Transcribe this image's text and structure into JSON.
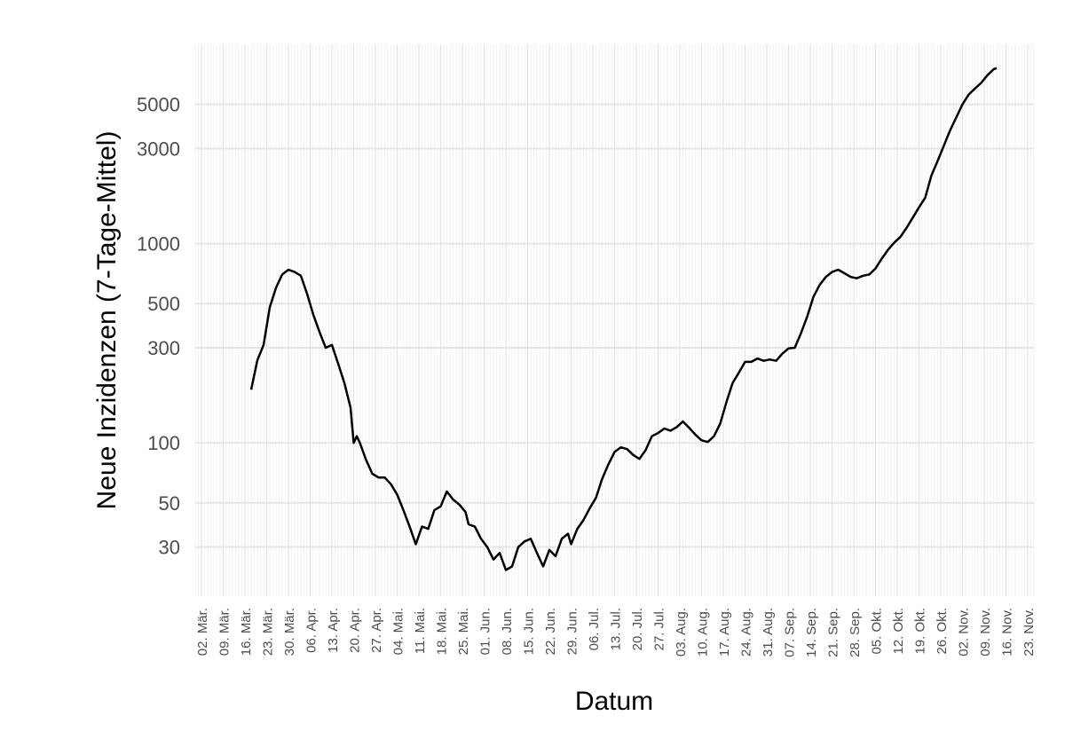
{
  "chart_data": {
    "type": "line",
    "y_label": "Neue Inzidenzen (7-Tage-Mittel)",
    "x_label": "Datum",
    "log_y": true,
    "grid": true,
    "color": "#000000",
    "xlim": [
      "02-28",
      "11-25"
    ],
    "ylim": [
      17,
      10000
    ],
    "yticks": [
      30,
      50,
      100,
      300,
      500,
      1000,
      3000,
      5000
    ],
    "xticks": [
      {
        "value": "03-02",
        "label": "02. Mär."
      },
      {
        "value": "03-09",
        "label": "09. Mär."
      },
      {
        "value": "03-16",
        "label": "16. Mär."
      },
      {
        "value": "03-23",
        "label": "23. Mär."
      },
      {
        "value": "03-30",
        "label": "30. Mär."
      },
      {
        "value": "04-06",
        "label": "06. Apr."
      },
      {
        "value": "04-13",
        "label": "13. Apr."
      },
      {
        "value": "04-20",
        "label": "20. Apr."
      },
      {
        "value": "04-27",
        "label": "27. Apr."
      },
      {
        "value": "05-04",
        "label": "04. Mai."
      },
      {
        "value": "05-11",
        "label": "11. Mai."
      },
      {
        "value": "05-18",
        "label": "18. Mai."
      },
      {
        "value": "05-25",
        "label": "25. Mai."
      },
      {
        "value": "06-01",
        "label": "01. Jun."
      },
      {
        "value": "06-08",
        "label": "08. Jun."
      },
      {
        "value": "06-15",
        "label": "15. Jun."
      },
      {
        "value": "06-22",
        "label": "22. Jun."
      },
      {
        "value": "06-29",
        "label": "29. Jun."
      },
      {
        "value": "07-06",
        "label": "06. Jul."
      },
      {
        "value": "07-13",
        "label": "13. Jul."
      },
      {
        "value": "07-20",
        "label": "20. Jul."
      },
      {
        "value": "07-27",
        "label": "27. Jul."
      },
      {
        "value": "08-03",
        "label": "03. Aug."
      },
      {
        "value": "08-10",
        "label": "10. Aug."
      },
      {
        "value": "08-17",
        "label": "17. Aug."
      },
      {
        "value": "08-24",
        "label": "24. Aug."
      },
      {
        "value": "08-31",
        "label": "31. Aug."
      },
      {
        "value": "09-07",
        "label": "07. Sep."
      },
      {
        "value": "09-14",
        "label": "14. Sep."
      },
      {
        "value": "09-21",
        "label": "21. Sep."
      },
      {
        "value": "09-28",
        "label": "28. Sep."
      },
      {
        "value": "10-05",
        "label": "05. Okt."
      },
      {
        "value": "10-12",
        "label": "12. Okt."
      },
      {
        "value": "10-19",
        "label": "19. Okt."
      },
      {
        "value": "10-26",
        "label": "26. Okt."
      },
      {
        "value": "11-02",
        "label": "02. Nov."
      },
      {
        "value": "11-09",
        "label": "09. Nov."
      },
      {
        "value": "11-16",
        "label": "16. Nov."
      },
      {
        "value": "11-23",
        "label": "23. Nov."
      }
    ],
    "x": [
      "03-18",
      "03-20",
      "03-22",
      "03-24",
      "03-26",
      "03-28",
      "03-30",
      "04-01",
      "04-03",
      "04-05",
      "04-07",
      "04-09",
      "04-11",
      "04-13",
      "04-15",
      "04-17",
      "04-19",
      "04-20",
      "04-21",
      "04-22",
      "04-24",
      "04-26",
      "04-28",
      "04-30",
      "05-02",
      "05-04",
      "05-06",
      "05-08",
      "05-10",
      "05-12",
      "05-14",
      "05-16",
      "05-18",
      "05-20",
      "05-22",
      "05-24",
      "05-26",
      "05-27",
      "05-29",
      "05-31",
      "06-02",
      "06-04",
      "06-06",
      "06-08",
      "06-10",
      "06-12",
      "06-14",
      "06-16",
      "06-18",
      "06-20",
      "06-22",
      "06-24",
      "06-26",
      "06-28",
      "06-29",
      "07-01",
      "07-03",
      "07-05",
      "07-07",
      "07-09",
      "07-11",
      "07-13",
      "07-15",
      "07-17",
      "07-19",
      "07-21",
      "07-23",
      "07-25",
      "07-27",
      "07-29",
      "07-31",
      "08-02",
      "08-04",
      "08-06",
      "08-08",
      "08-10",
      "08-12",
      "08-14",
      "08-16",
      "08-18",
      "08-20",
      "08-22",
      "08-24",
      "08-26",
      "08-28",
      "08-30",
      "09-01",
      "09-03",
      "09-05",
      "09-07",
      "09-09",
      "09-11",
      "09-13",
      "09-15",
      "09-17",
      "09-19",
      "09-21",
      "09-23",
      "09-25",
      "09-27",
      "09-29",
      "10-01",
      "10-03",
      "10-05",
      "10-07",
      "10-09",
      "10-11",
      "10-13",
      "10-15",
      "10-17",
      "10-19",
      "10-21",
      "10-23",
      "10-25",
      "10-27",
      "10-29",
      "10-31",
      "11-02",
      "11-04",
      "11-06",
      "11-08",
      "11-10",
      "11-12",
      "11-13"
    ],
    "values": [
      185,
      260,
      310,
      480,
      600,
      700,
      740,
      720,
      690,
      560,
      440,
      360,
      300,
      310,
      250,
      200,
      150,
      100,
      108,
      100,
      82,
      70,
      67,
      67,
      62,
      55,
      46,
      38,
      31,
      38,
      37,
      46,
      48,
      57,
      52,
      49,
      45,
      39,
      38,
      33,
      30,
      26,
      28,
      23,
      24,
      30,
      32,
      33,
      28,
      24,
      29,
      27,
      33,
      35,
      31,
      37,
      41,
      47,
      53,
      66,
      78,
      90,
      95,
      93,
      87,
      83,
      92,
      108,
      112,
      118,
      115,
      120,
      128,
      119,
      110,
      103,
      101,
      108,
      125,
      160,
      200,
      225,
      255,
      255,
      265,
      258,
      262,
      258,
      280,
      298,
      300,
      355,
      430,
      540,
      620,
      680,
      720,
      740,
      710,
      680,
      670,
      690,
      700,
      750,
      840,
      930,
      1010,
      1080,
      1200,
      1350,
      1520,
      1700,
      2200,
      2600,
      3100,
      3700,
      4300,
      5000,
      5600,
      6000,
      6400,
      7000,
      7500,
      7600
    ]
  }
}
